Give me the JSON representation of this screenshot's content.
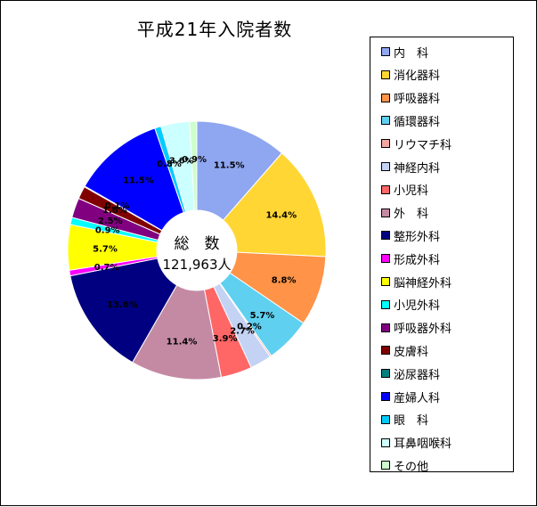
{
  "chart_data": {
    "type": "donut",
    "title": "平成21年入院者数",
    "center_label": {
      "line1": "総　数",
      "line2": "121,963人"
    },
    "legend_position": "right",
    "series": [
      {
        "name": "内　科",
        "value": 11.5,
        "label": "11.5%",
        "color": "#8fa6f0"
      },
      {
        "name": "消化器科",
        "value": 14.4,
        "label": "14.4%",
        "color": "#ffd633"
      },
      {
        "name": "呼吸器科",
        "value": 8.8,
        "label": "8.8%",
        "color": "#ff9347"
      },
      {
        "name": "循環器科",
        "value": 5.7,
        "label": "5.7%",
        "color": "#5fd0f0"
      },
      {
        "name": "リウマチ科",
        "value": 0.2,
        "label": "0.2%",
        "color": "#f4a7a0"
      },
      {
        "name": "神経内科",
        "value": 2.7,
        "label": "2.7%",
        "color": "#c4d2f4"
      },
      {
        "name": "小児科",
        "value": 3.9,
        "label": "3.9%",
        "color": "#ff6666"
      },
      {
        "name": "外　科",
        "value": 11.4,
        "label": "11.4%",
        "color": "#c48aa4"
      },
      {
        "name": "整形外科",
        "value": 13.6,
        "label": "13.6%",
        "color": "#000080"
      },
      {
        "name": "形成外科",
        "value": 0.7,
        "label": "0.7%",
        "color": "#ff00ff"
      },
      {
        "name": "脳神経外科",
        "value": 5.7,
        "label": "5.7%",
        "color": "#ffff00"
      },
      {
        "name": "小児外科",
        "value": 0.9,
        "label": "0.9%",
        "color": "#00ffff"
      },
      {
        "name": "呼吸器外科",
        "value": 2.5,
        "label": "2.5%",
        "color": "#800080"
      },
      {
        "name": "皮膚科",
        "value": 1.6,
        "label": "1.6%",
        "color": "#800000"
      },
      {
        "name": "泌尿器科",
        "value": 0.1,
        "label": "0.1%",
        "color": "#008080"
      },
      {
        "name": "産婦人科",
        "value": 11.5,
        "label": "11.5%",
        "color": "#0000ff"
      },
      {
        "name": "眼　科",
        "value": 0.8,
        "label": "0.8%",
        "color": "#00ccff"
      },
      {
        "name": "耳鼻咽喉科",
        "value": 3.6,
        "label": "3.6%",
        "color": "#ccffff"
      },
      {
        "name": "その他",
        "value": 0.9,
        "label": "0.9%",
        "color": "#ccffcc"
      }
    ]
  }
}
